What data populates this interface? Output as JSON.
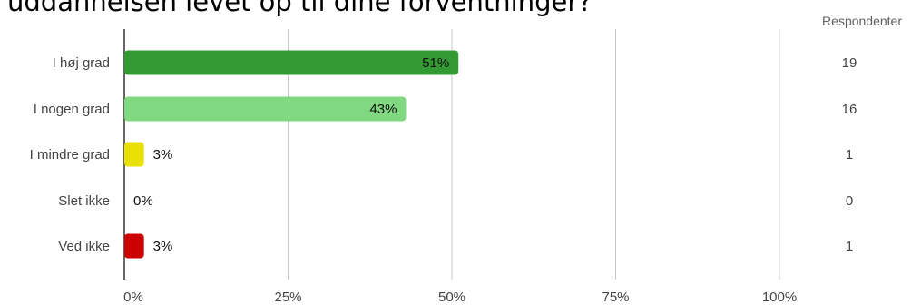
{
  "title": "uddannelsen levet op til dine forventninger?",
  "respondents_header": "Respondenter",
  "chart_data": {
    "type": "bar",
    "orientation": "horizontal",
    "title": "uddannelsen levet op til dine forventninger?",
    "categories": [
      "I høj grad",
      "I nogen grad",
      "I mindre grad",
      "Slet ikke",
      "Ved ikke"
    ],
    "values": [
      51,
      43,
      3,
      0,
      3
    ],
    "value_labels": [
      "51%",
      "43%",
      "3%",
      "0%",
      "3%"
    ],
    "respondents": [
      "19",
      "16",
      "1",
      "0",
      "1"
    ],
    "colors": [
      "#339933",
      "#80d880",
      "#e8e000",
      "#999999",
      "#cc0000"
    ],
    "xlim": [
      0,
      100
    ],
    "xticks": [
      0,
      25,
      50,
      75,
      100
    ],
    "xtick_labels": [
      "0%",
      "25%",
      "50%",
      "75%",
      "100%"
    ],
    "grid": true
  }
}
